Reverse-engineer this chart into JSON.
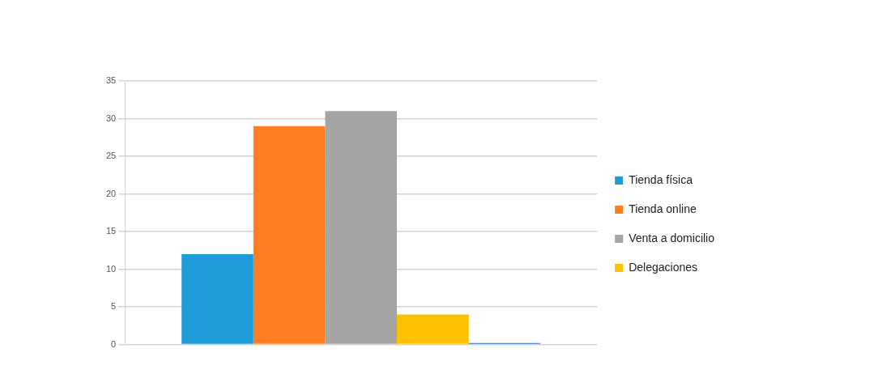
{
  "chart_data": {
    "type": "bar",
    "categories": [
      null
    ],
    "series": [
      {
        "name": "Tienda física",
        "color": "#1f9bd7",
        "values": [
          12
        ]
      },
      {
        "name": "Tienda online",
        "color": "#fe7f22",
        "values": [
          29
        ]
      },
      {
        "name": "Venta a domicilio",
        "color": "#a5a5a5",
        "values": [
          31
        ]
      },
      {
        "name": "Delegaciones",
        "color": "#ffc000",
        "values": [
          4
        ]
      },
      {
        "color": "#1f6fc0",
        "values": [
          0.2
        ]
      }
    ],
    "ylim": [
      0,
      35
    ],
    "yticks": [
      0,
      5,
      10,
      15,
      20,
      25,
      30,
      35
    ],
    "grid": "y",
    "legend": "right"
  }
}
